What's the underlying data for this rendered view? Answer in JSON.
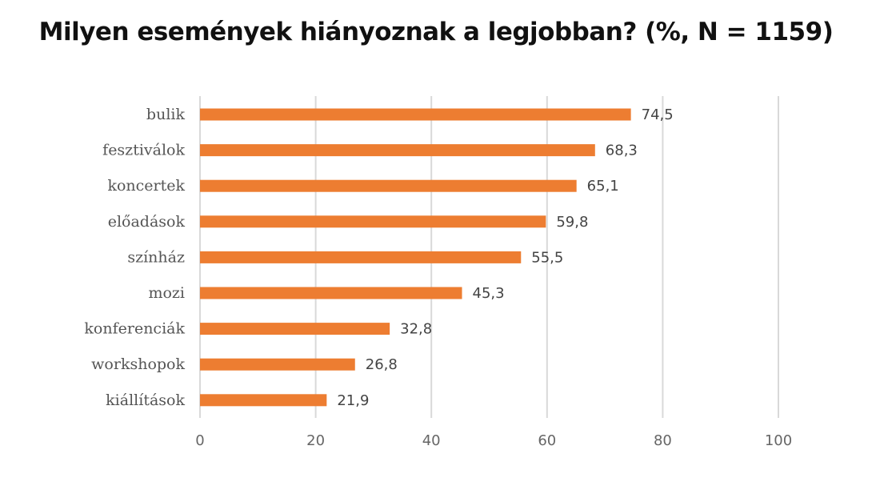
{
  "chart_data": {
    "type": "bar",
    "orientation": "horizontal",
    "title": "Milyen események hiányoznak a legjobban? (%, N = 1159)",
    "categories": [
      "bulik",
      "fesztiválok",
      "koncertek",
      "előadások",
      "színház",
      "mozi",
      "konferenciák",
      "workshopok",
      "kiállítások"
    ],
    "values": [
      74.5,
      68.3,
      65.1,
      59.8,
      55.5,
      45.3,
      32.8,
      26.8,
      21.9
    ],
    "value_labels": [
      "74,5",
      "68,3",
      "65,1",
      "59,8",
      "55,5",
      "45,3",
      "32,8",
      "26,8",
      "21,9"
    ],
    "xlim": [
      0,
      100
    ],
    "x_ticks": [
      0,
      20,
      40,
      60,
      80,
      100
    ],
    "x_tick_labels": [
      "0",
      "20",
      "40",
      "60",
      "80",
      "100"
    ],
    "xlabel": "",
    "ylabel": "",
    "grid": true,
    "legend": false,
    "bar_color": "#ED7D31",
    "grid_color": "#D9D9D9"
  }
}
